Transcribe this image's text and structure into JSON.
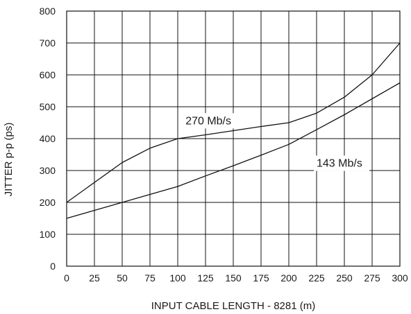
{
  "chart_data": {
    "type": "line",
    "title": "",
    "xlabel": "INPUT CABLE LENGTH - 8281 (m)",
    "ylabel": "JITTER p-p (ps)",
    "xlim": [
      0,
      300
    ],
    "ylim": [
      0,
      800
    ],
    "x_ticks": [
      0,
      25,
      50,
      75,
      100,
      125,
      150,
      175,
      200,
      225,
      250,
      275,
      300
    ],
    "y_ticks": [
      0,
      100,
      200,
      300,
      400,
      500,
      600,
      700,
      800
    ],
    "grid": true,
    "legend": "none",
    "series": [
      {
        "name": "270 Mb/s",
        "x": [
          0,
          50,
          75,
          100,
          125,
          150,
          175,
          200,
          225,
          250,
          275,
          300
        ],
        "y": [
          200,
          325,
          370,
          400,
          412,
          425,
          438,
          450,
          480,
          530,
          600,
          700
        ]
      },
      {
        "name": "143 Mb/s",
        "x": [
          0,
          25,
          50,
          75,
          100,
          125,
          150,
          175,
          200,
          225,
          250,
          275,
          300
        ],
        "y": [
          150,
          175,
          200,
          225,
          250,
          283,
          315,
          348,
          382,
          428,
          475,
          525,
          575
        ]
      }
    ],
    "annotations": [
      {
        "text": "270 Mb/s",
        "x": 107,
        "y": 445
      },
      {
        "text": "143 Mb/s",
        "x": 225,
        "y": 312
      }
    ]
  }
}
